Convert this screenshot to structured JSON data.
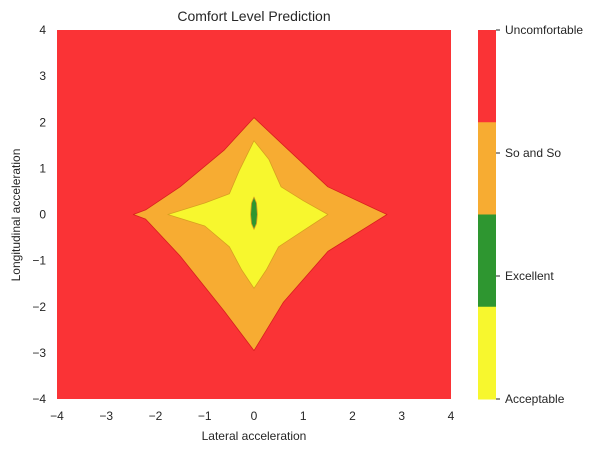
{
  "chart_data": {
    "type": "filled-contour",
    "title": "Comfort Level Prediction",
    "xlabel": "Lateral acceleration",
    "ylabel": "Longitudinal acceleration",
    "xlim": [
      -4,
      4
    ],
    "ylim": [
      -4,
      4
    ],
    "xticks": [
      "−4",
      "−3",
      "−2",
      "−1",
      "0",
      "1",
      "2",
      "3",
      "4"
    ],
    "yticks": [
      "−4",
      "−3",
      "−2",
      "−1",
      "0",
      "1",
      "2",
      "3",
      "4"
    ],
    "grid": false,
    "classes": [
      {
        "name": "Acceptable",
        "level": 0,
        "color": "#f7f72e"
      },
      {
        "name": "Excellent",
        "level": 1,
        "color": "#2e9630"
      },
      {
        "name": "So and So",
        "level": 2,
        "color": "#f7ac32"
      },
      {
        "name": "Uncomfortable",
        "level": 3,
        "color": "#fa3336"
      }
    ],
    "colorbar": {
      "labels": [
        "Uncomfortable",
        "So and So",
        "Excellent",
        "Acceptable"
      ],
      "placement": "right"
    },
    "regions": [
      {
        "class": "Uncomfortable",
        "polygon": [
          [
            -4,
            -4
          ],
          [
            4,
            -4
          ],
          [
            4,
            4
          ],
          [
            -4,
            4
          ]
        ]
      },
      {
        "class": "So and So",
        "polygon": [
          [
            0,
            2.1
          ],
          [
            0.6,
            1.5
          ],
          [
            1.5,
            0.6
          ],
          [
            2.4,
            0.15
          ],
          [
            2.7,
            0
          ],
          [
            2.4,
            -0.2
          ],
          [
            1.5,
            -0.8
          ],
          [
            0.6,
            -1.9
          ],
          [
            0,
            -2.95
          ],
          [
            -0.6,
            -2.1
          ],
          [
            -1.5,
            -0.9
          ],
          [
            -2.2,
            -0.1
          ],
          [
            -2.45,
            0
          ],
          [
            -2.2,
            0.1
          ],
          [
            -1.5,
            0.6
          ],
          [
            -0.6,
            1.4
          ]
        ]
      },
      {
        "class": "Acceptable",
        "polygon": [
          [
            0,
            1.6
          ],
          [
            0.3,
            1.2
          ],
          [
            0.55,
            0.6
          ],
          [
            1,
            0.3
          ],
          [
            1.5,
            0
          ],
          [
            1,
            -0.35
          ],
          [
            0.5,
            -0.7
          ],
          [
            0.25,
            -1.2
          ],
          [
            0,
            -1.6
          ],
          [
            -0.25,
            -1.2
          ],
          [
            -0.5,
            -0.7
          ],
          [
            -1,
            -0.25
          ],
          [
            -1.75,
            0
          ],
          [
            -1,
            0.25
          ],
          [
            -0.5,
            0.45
          ],
          [
            -0.3,
            0.95
          ]
        ]
      },
      {
        "class": "Excellent",
        "polygon": [
          [
            0,
            0.38
          ],
          [
            0.05,
            0.25
          ],
          [
            0.07,
            0
          ],
          [
            0.05,
            -0.2
          ],
          [
            0,
            -0.32
          ],
          [
            -0.05,
            -0.2
          ],
          [
            -0.07,
            0
          ],
          [
            -0.05,
            0.25
          ]
        ]
      }
    ]
  }
}
